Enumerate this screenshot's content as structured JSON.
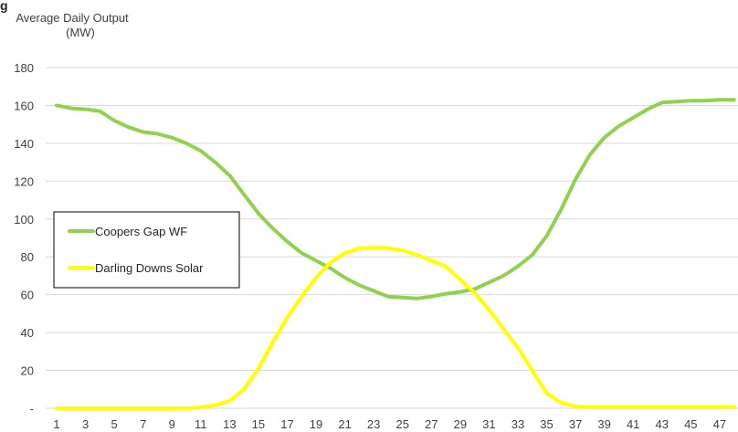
{
  "corner_mark": "g",
  "chart_data": {
    "type": "line",
    "title": "",
    "ylabel": "Average Daily Output\n(MW)",
    "xlabel": "",
    "x": [
      1,
      2,
      3,
      4,
      5,
      6,
      7,
      8,
      9,
      10,
      11,
      12,
      13,
      14,
      15,
      16,
      17,
      18,
      19,
      20,
      21,
      22,
      23,
      24,
      25,
      26,
      27,
      28,
      29,
      30,
      31,
      32,
      33,
      34,
      35,
      36,
      37,
      38,
      39,
      40,
      41,
      42,
      43,
      44,
      45,
      46,
      47,
      48
    ],
    "x_tick_labels": [
      "1",
      "3",
      "5",
      "7",
      "9",
      "11",
      "13",
      "15",
      "17",
      "19",
      "21",
      "23",
      "25",
      "27",
      "29",
      "31",
      "33",
      "35",
      "37",
      "39",
      "41",
      "43",
      "45",
      "47"
    ],
    "y_tick_labels": [
      "-",
      "20",
      "40",
      "60",
      "80",
      "100",
      "120",
      "140",
      "160",
      "180"
    ],
    "ylim": [
      0,
      180
    ],
    "grid": "horizontal",
    "legend": "left-middle",
    "series": [
      {
        "name": "Coopers Gap WF",
        "color": "#92d050",
        "values": [
          160,
          158.5,
          158,
          157,
          152,
          148.5,
          146,
          145,
          143,
          140,
          136,
          130,
          123,
          113,
          103,
          95,
          88,
          82,
          78,
          74,
          69,
          65,
          62,
          59,
          58.5,
          58,
          59,
          60.5,
          61.5,
          63,
          66.5,
          70,
          75,
          81,
          91,
          105,
          121,
          134,
          143,
          149,
          153.5,
          158,
          161.5,
          162,
          162.5,
          162.5,
          163,
          163
        ]
      },
      {
        "name": "Darling Downs Solar",
        "color": "#ffff00",
        "values": [
          0,
          0,
          0,
          0,
          0,
          0,
          0,
          0,
          0,
          0,
          0.5,
          1.5,
          4,
          10,
          21,
          35,
          48,
          59,
          69,
          77,
          82,
          84.5,
          85,
          84.5,
          83.5,
          81,
          78,
          75,
          68,
          61,
          52,
          42,
          32,
          20,
          8,
          3,
          1,
          0.5,
          0.5,
          0.5,
          0.5,
          0.5,
          0.5,
          0.5,
          0.5,
          0.5,
          0.5,
          0.5
        ]
      }
    ]
  }
}
